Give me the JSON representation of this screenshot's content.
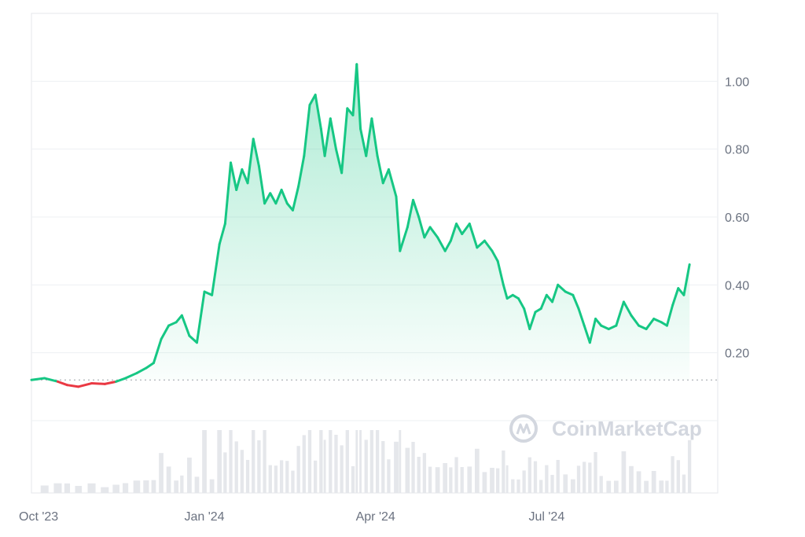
{
  "chart_data": {
    "type": "area",
    "title": "",
    "xlabel": "",
    "ylabel": "",
    "x_ticks": [
      "Oct '23",
      "Jan '24",
      "Apr '24",
      "Jul '24"
    ],
    "x_tick_dates": [
      "2023-10-01",
      "2024-01-01",
      "2024-04-01",
      "2024-07-01"
    ],
    "x_range": [
      "2023-10-01",
      "2024-09-30"
    ],
    "y_ticks": [
      "0.20",
      "0.40",
      "0.60",
      "0.80",
      "1.00"
    ],
    "y_tick_values": [
      0.2,
      0.4,
      0.6,
      0.8,
      1.0
    ],
    "ylim": [
      0.0,
      1.2
    ],
    "baseline": 0.12,
    "grid": true,
    "colors": {
      "up": "#16c784",
      "down": "#ea3943",
      "baseline": "#9aa0a6"
    },
    "watermark": "CoinMarketCap",
    "series": [
      {
        "values": [
          [
            "2023-10-01",
            0.12
          ],
          [
            "2023-10-08",
            0.125
          ],
          [
            "2023-10-15",
            0.115
          ],
          [
            "2023-10-20",
            0.105
          ],
          [
            "2023-10-26",
            0.1
          ],
          [
            "2023-11-02",
            0.11
          ],
          [
            "2023-11-09",
            0.108
          ],
          [
            "2023-11-15",
            0.115
          ],
          [
            "2023-11-20",
            0.125
          ],
          [
            "2023-11-26",
            0.14
          ],
          [
            "2023-12-01",
            0.155
          ],
          [
            "2023-12-05",
            0.17
          ],
          [
            "2023-12-09",
            0.24
          ],
          [
            "2023-12-13",
            0.28
          ],
          [
            "2023-12-17",
            0.29
          ],
          [
            "2023-12-20",
            0.31
          ],
          [
            "2023-12-24",
            0.25
          ],
          [
            "2023-12-28",
            0.23
          ],
          [
            "2024-01-01",
            0.38
          ],
          [
            "2024-01-05",
            0.37
          ],
          [
            "2024-01-09",
            0.52
          ],
          [
            "2024-01-12",
            0.58
          ],
          [
            "2024-01-15",
            0.76
          ],
          [
            "2024-01-18",
            0.68
          ],
          [
            "2024-01-21",
            0.74
          ],
          [
            "2024-01-24",
            0.7
          ],
          [
            "2024-01-27",
            0.83
          ],
          [
            "2024-01-30",
            0.75
          ],
          [
            "2024-02-02",
            0.64
          ],
          [
            "2024-02-05",
            0.67
          ],
          [
            "2024-02-08",
            0.64
          ],
          [
            "2024-02-11",
            0.68
          ],
          [
            "2024-02-14",
            0.64
          ],
          [
            "2024-02-17",
            0.62
          ],
          [
            "2024-02-20",
            0.69
          ],
          [
            "2024-02-23",
            0.78
          ],
          [
            "2024-02-26",
            0.93
          ],
          [
            "2024-02-29",
            0.96
          ],
          [
            "2024-03-03",
            0.86
          ],
          [
            "2024-03-05",
            0.78
          ],
          [
            "2024-03-08",
            0.89
          ],
          [
            "2024-03-11",
            0.8
          ],
          [
            "2024-03-14",
            0.73
          ],
          [
            "2024-03-17",
            0.92
          ],
          [
            "2024-03-20",
            0.9
          ],
          [
            "2024-03-22",
            1.05
          ],
          [
            "2024-03-24",
            0.86
          ],
          [
            "2024-03-27",
            0.78
          ],
          [
            "2024-03-30",
            0.89
          ],
          [
            "2024-04-02",
            0.78
          ],
          [
            "2024-04-05",
            0.7
          ],
          [
            "2024-04-08",
            0.74
          ],
          [
            "2024-04-12",
            0.66
          ],
          [
            "2024-04-14",
            0.5
          ],
          [
            "2024-04-18",
            0.57
          ],
          [
            "2024-04-21",
            0.65
          ],
          [
            "2024-04-24",
            0.6
          ],
          [
            "2024-04-27",
            0.54
          ],
          [
            "2024-04-30",
            0.57
          ],
          [
            "2024-05-04",
            0.54
          ],
          [
            "2024-05-08",
            0.5
          ],
          [
            "2024-05-11",
            0.53
          ],
          [
            "2024-05-14",
            0.58
          ],
          [
            "2024-05-17",
            0.55
          ],
          [
            "2024-05-21",
            0.58
          ],
          [
            "2024-05-25",
            0.51
          ],
          [
            "2024-05-29",
            0.53
          ],
          [
            "2024-06-02",
            0.5
          ],
          [
            "2024-06-05",
            0.47
          ],
          [
            "2024-06-08",
            0.4
          ],
          [
            "2024-06-10",
            0.36
          ],
          [
            "2024-06-13",
            0.37
          ],
          [
            "2024-06-16",
            0.36
          ],
          [
            "2024-06-19",
            0.33
          ],
          [
            "2024-06-22",
            0.27
          ],
          [
            "2024-06-25",
            0.32
          ],
          [
            "2024-06-28",
            0.33
          ],
          [
            "2024-07-01",
            0.37
          ],
          [
            "2024-07-04",
            0.35
          ],
          [
            "2024-07-07",
            0.4
          ],
          [
            "2024-07-11",
            0.38
          ],
          [
            "2024-07-15",
            0.37
          ],
          [
            "2024-07-18",
            0.33
          ],
          [
            "2024-07-21",
            0.28
          ],
          [
            "2024-07-24",
            0.23
          ],
          [
            "2024-07-27",
            0.3
          ],
          [
            "2024-07-30",
            0.28
          ],
          [
            "2024-08-03",
            0.27
          ],
          [
            "2024-08-07",
            0.28
          ],
          [
            "2024-08-11",
            0.35
          ],
          [
            "2024-08-15",
            0.31
          ],
          [
            "2024-08-19",
            0.28
          ],
          [
            "2024-08-23",
            0.27
          ],
          [
            "2024-08-27",
            0.3
          ],
          [
            "2024-08-31",
            0.29
          ],
          [
            "2024-09-03",
            0.28
          ],
          [
            "2024-09-06",
            0.34
          ],
          [
            "2024-09-09",
            0.39
          ],
          [
            "2024-09-12",
            0.37
          ],
          [
            "2024-09-15",
            0.46
          ]
        ]
      }
    ]
  }
}
